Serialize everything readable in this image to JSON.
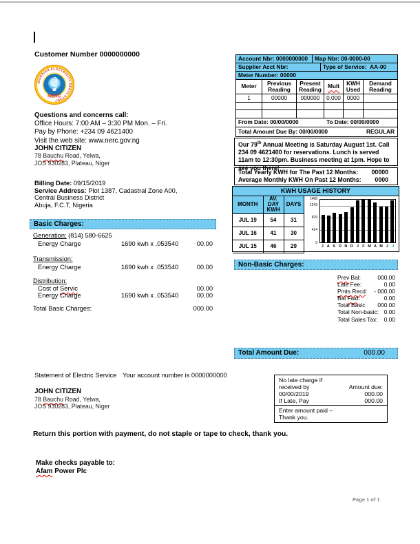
{
  "colors": {
    "accent_blue": "#74CDF0",
    "squiggle_red": "#E00000",
    "chart_bar": "#000000",
    "chart_last_label_green": "#00A651",
    "page_number_gray": "#7F7F7F"
  },
  "page": {
    "page_number": "Page 1 of 1"
  },
  "top": {
    "customer_number_line": "Customer Number 0000000000"
  },
  "logo": {
    "ring_text": "NIGERIAN ELECTRICITY REGULATORY COMMISSION",
    "acronym": "NERC"
  },
  "contact": {
    "title": "Questions and concerns call:",
    "lines": [
      "Office Hours: 7:00 AM – 3:30 PM Mon. – Fri.",
      "Pay by Phone: +234 09 4621400",
      "Visit the web site: www.nerc.gov.ng"
    ]
  },
  "customer": {
    "name": "JOHN CITIZEN",
    "address1": {
      "pre": "78 ",
      "sq": "Bauchu",
      "post": " Road, Yelwa,"
    },
    "address2": "JOS 930283, Plateau, Niger"
  },
  "billing": {
    "date_label": "Billing Date:",
    "date": " 09/15/2019",
    "service_label": "Service Address:",
    "service_value": " Plot 1387, Cadastral Zone A00,",
    "line2": "Central Business District",
    "line3": "Abuja, F.C.T, Nigeria"
  },
  "account_table": {
    "account": {
      "pre": "Account ",
      "sq": "Nbr",
      "post": ":",
      "value": " 0000000000"
    },
    "map": {
      "pre": "Map ",
      "sq": "Nbr",
      "post": ":",
      "value": " 00-0000-00"
    },
    "supplier": {
      "pre": "Supplier Acct ",
      "sq": "Nbr",
      "post": ":"
    },
    "service_type_label": "Type of Service:",
    "service_type_value": "AA-00",
    "meter_number_label": "Meter Number:",
    "meter_number_value": " 00000",
    "columns": [
      "Meter",
      "Previous Reading",
      "Present Reading",
      "Mult",
      "KWH Used",
      "Demand Reading"
    ],
    "rows": [
      [
        "1",
        "00000",
        "000000",
        "0.000",
        "0000",
        ""
      ],
      [
        "",
        "",
        "",
        "",
        "",
        ""
      ],
      [
        "",
        "",
        "",
        "",
        "",
        ""
      ]
    ],
    "from_date_label": "From Date:",
    "from_date": " 00/00/0000",
    "to_date_label": "To Date:",
    "to_date": " 00/00/0000",
    "due_by_label": "Total Amount Due By:",
    "due_by_date": " 00/00/0000",
    "due_by_status": "REGULAR"
  },
  "meeting": {
    "pre": "Our 79",
    "sup": "th",
    "rest": " Annual Meeting is Saturday August 1st. Call 234 09 4621400 for reservations. Lunch is served 11am to 12:30pm. Business meeting at 1pm. Hope to see you there!"
  },
  "kwh_totals": {
    "yearly_label": "Total Yearly KWH for The Past 12 Months:",
    "yearly_value": "00000",
    "monthly_label": "Average Monthly KWH On Past 12 Months:",
    "monthly_value": "0000"
  },
  "usage_history": {
    "title": "KWH USAGE HISTORY",
    "columns": [
      "MONTH",
      "AV. DAY KWH",
      "DAYS"
    ],
    "rows": [
      [
        "JUL 19",
        "54",
        "31"
      ],
      [
        "JUL 16",
        "41",
        "30"
      ],
      [
        "JUL 15",
        "46",
        "29"
      ]
    ]
  },
  "chart_data": {
    "type": "bar",
    "title": "KWH USAGE HISTORY",
    "x": [
      "J",
      "A",
      "S",
      "O",
      "N",
      "D",
      "J",
      "F",
      "M",
      "A",
      "M",
      "J",
      "J"
    ],
    "values": [
      940,
      925,
      1030,
      960,
      1045,
      1215,
      1440,
      1460,
      1468,
      1375,
      1243,
      1240,
      1440
    ],
    "yticks": [
      0,
      414,
      829,
      1243,
      1468
    ],
    "ylim": [
      0,
      1468
    ],
    "xlabel": "",
    "ylabel": "",
    "grid": true,
    "bar_color": "#000000",
    "last_label_color": "#00A651"
  },
  "basic_charges": {
    "header": "Basic Charges:",
    "generation_label": "Generation:",
    "generation_extra": " (814) 580-6625",
    "transmission_label": "Transmission:",
    "distribution_label": "Distribution:",
    "energy_label": "Energy Charge",
    "cost_label": {
      "pre": "Cost of ",
      "sq": "Servic",
      "post": ""
    },
    "calc": "1690 kwh x .053540",
    "amounts": {
      "generation": "00.00",
      "transmission": "00.00",
      "cost": "00.00",
      "distribution": "00.00"
    },
    "total_label": "Total Basic Charges:",
    "total": "000.00"
  },
  "non_basic": {
    "header": "Non-Basic Charges:",
    "items": [
      {
        "pre": "",
        "sq": "Prev",
        "post": " Bal:",
        "value": "000.00"
      },
      {
        "pre": "Late Fee:",
        "sq": "",
        "post": "",
        "value": "0.00"
      },
      {
        "pre": "",
        "sq": "Pmts Recd",
        "post": ":",
        "value": "- 000.00"
      },
      {
        "pre": "Bal ",
        "sq": "Fwd",
        "post": ":",
        "value": "0.00"
      },
      {
        "pre": "Total Basic",
        "sq": "",
        "post": "",
        "value": "000.00"
      },
      {
        "pre": "Total Non-basic:",
        "sq": "",
        "post": "",
        "value": "0.00"
      },
      {
        "pre": "Total Sales Tax:",
        "sq": "",
        "post": "",
        "value": "0.00"
      }
    ]
  },
  "total_due": {
    "label": "Total Amount Due:",
    "value": "000.00"
  },
  "statement": {
    "title": "Statement of Electric Service",
    "account_line": "Your account number is 0000000000"
  },
  "late_box": {
    "line1": "No late charge if",
    "line2": "received by",
    "amount_due_label": "Amount due:",
    "date": "00/00/2019",
    "amount1": "000.00",
    "late_label": "If Late, Pay",
    "amount2": "000.00",
    "enter_line1": "Enter amount paid –",
    "enter_line2": "Thank you."
  },
  "footer": {
    "return_line": "Return this portion with payment, do not staple or tape to check, thank you.",
    "checks_label": "Make checks payable to:",
    "payee": {
      "sq": "Afam",
      "post": " Power Plc"
    }
  }
}
